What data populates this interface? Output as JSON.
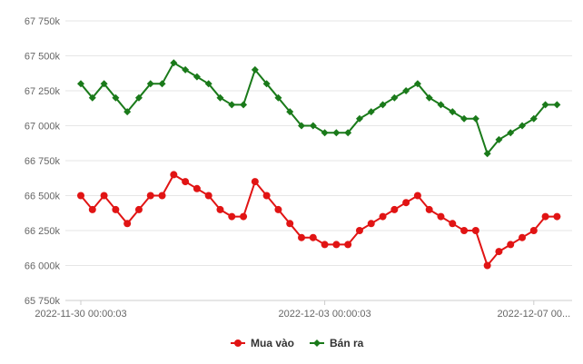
{
  "chart_data": {
    "type": "line",
    "title": "",
    "xlabel": "",
    "ylabel": "",
    "ylim": [
      65750,
      67750
    ],
    "yticks": [
      65750,
      66000,
      66250,
      66500,
      66750,
      67000,
      67250,
      67500,
      67750
    ],
    "ytick_labels": [
      "65 750k",
      "66 000k",
      "66 250k",
      "66 500k",
      "66 750k",
      "67 000k",
      "67 250k",
      "67 500k",
      "67 750k"
    ],
    "xtick_labels": [
      {
        "index": 0,
        "label": "2022-11-30 00:00:03"
      },
      {
        "index": 21,
        "label": "2022-12-03 00:00:03"
      },
      {
        "index": 39,
        "label": "2022-12-07 00..."
      }
    ],
    "grid": true,
    "legend_position": "bottom",
    "series": [
      {
        "name": "Mua vào",
        "color": "#e11414",
        "marker": "circle",
        "values": [
          66500,
          66400,
          66500,
          66400,
          66300,
          66400,
          66500,
          66500,
          66650,
          66600,
          66550,
          66500,
          66400,
          66350,
          66350,
          66600,
          66500,
          66400,
          66300,
          66200,
          66200,
          66150,
          66150,
          66150,
          66250,
          66300,
          66350,
          66400,
          66450,
          66500,
          66400,
          66350,
          66300,
          66250,
          66250,
          66000,
          66100,
          66150,
          66200,
          66250,
          66350,
          66350
        ]
      },
      {
        "name": "Bán ra",
        "color": "#1a7a1a",
        "marker": "diamond",
        "values": [
          67300,
          67200,
          67300,
          67200,
          67100,
          67200,
          67300,
          67300,
          67450,
          67400,
          67350,
          67300,
          67200,
          67150,
          67150,
          67400,
          67300,
          67200,
          67100,
          67000,
          67000,
          66950,
          66950,
          66950,
          67050,
          67100,
          67150,
          67200,
          67250,
          67300,
          67200,
          67150,
          67100,
          67050,
          67050,
          66800,
          66900,
          66950,
          67000,
          67050,
          67150,
          67150
        ]
      }
    ]
  }
}
